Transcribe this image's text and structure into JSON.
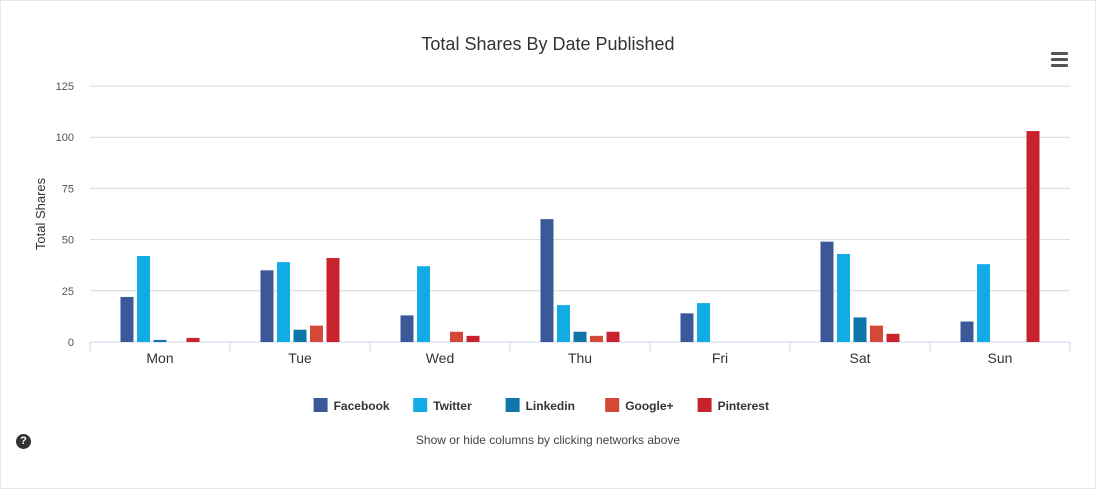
{
  "help_icon_glyph": "?",
  "hint_text": "Show or hide columns by clicking networks above",
  "menu_icon": "hamburger-menu-icon",
  "chart_data": {
    "type": "bar",
    "title": "Total Shares By Date Published",
    "xlabel": "",
    "ylabel": "Total Shares",
    "ylim": [
      0,
      125
    ],
    "yticks": [
      0,
      25,
      50,
      75,
      100,
      125
    ],
    "grid": true,
    "legend_position": "bottom-center",
    "categories": [
      "Mon",
      "Tue",
      "Wed",
      "Thu",
      "Fri",
      "Sat",
      "Sun"
    ],
    "series": [
      {
        "name": "Facebook",
        "color": "#3b5998",
        "values": [
          22,
          35,
          13,
          60,
          14,
          49,
          10
        ]
      },
      {
        "name": "Twitter",
        "color": "#11ace6",
        "values": [
          42,
          39,
          37,
          18,
          19,
          43,
          38
        ]
      },
      {
        "name": "Linkedin",
        "color": "#0e76a8",
        "values": [
          1,
          6,
          0,
          5,
          0,
          12,
          0
        ]
      },
      {
        "name": "Google+",
        "color": "#d34836",
        "values": [
          0,
          8,
          5,
          3,
          0,
          8,
          0
        ]
      },
      {
        "name": "Pinterest",
        "color": "#c8232c",
        "values": [
          2,
          41,
          3,
          5,
          0,
          4,
          103
        ]
      }
    ]
  }
}
